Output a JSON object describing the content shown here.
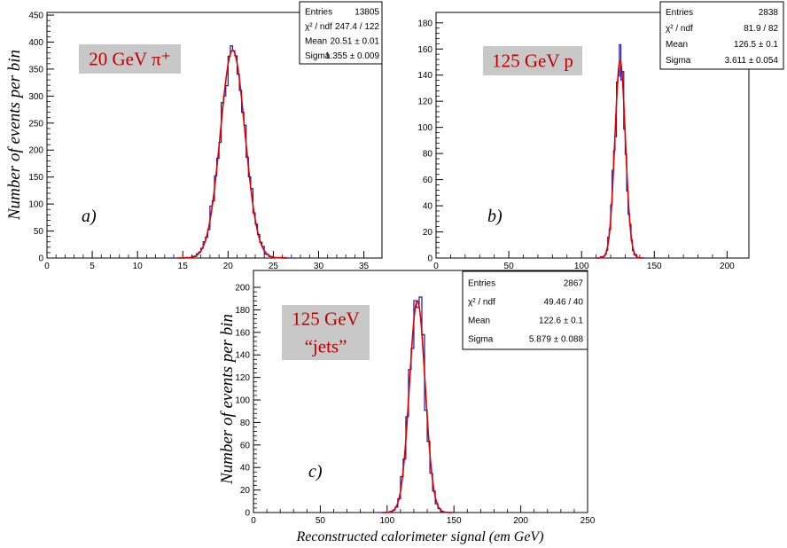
{
  "figure": {
    "ylabel": "Number of events per bin",
    "xlabel": "Reconstructed calorimeter signal (em GeV)"
  },
  "chart_data": [
    {
      "type": "histogram",
      "panel": "a)",
      "tag": [
        "20 GeV π⁺"
      ],
      "xlim": [
        0,
        37
      ],
      "ylim": [
        0,
        455
      ],
      "xticks": [
        0,
        5,
        10,
        15,
        20,
        25,
        30,
        35
      ],
      "yticks": [
        0,
        50,
        100,
        150,
        200,
        250,
        300,
        350,
        400,
        450
      ],
      "fit": {
        "mean": 20.51,
        "sigma": 1.355,
        "peak": 385,
        "color": "#e00000"
      },
      "histogram_color": "#1a1aa0",
      "bin_width": 0.25,
      "stats": [
        {
          "label": "Entries",
          "value": "13805"
        },
        {
          "label": "χ² / ndf",
          "value": "247.4 / 122"
        },
        {
          "label": "Mean",
          "value": "20.51 ± 0.01"
        },
        {
          "label": "Sigma",
          "value": "1.355 ± 0.009"
        }
      ]
    },
    {
      "type": "histogram",
      "panel": "b)",
      "tag": [
        "125 GeV p"
      ],
      "xlim": [
        0,
        215
      ],
      "ylim": [
        0,
        188
      ],
      "xticks": [
        0,
        50,
        100,
        150,
        200
      ],
      "yticks": [
        0,
        20,
        40,
        60,
        80,
        100,
        120,
        140,
        160,
        180
      ],
      "fit": {
        "mean": 126.5,
        "sigma": 3.611,
        "peak": 151,
        "color": "#e00000"
      },
      "histogram_color": "#1a1aa0",
      "bin_width": 1,
      "stats": [
        {
          "label": "Entries",
          "value": "2838"
        },
        {
          "label": "χ² / ndf",
          "value": "81.9 / 82"
        },
        {
          "label": "Mean",
          "value": "126.5 ± 0.1"
        },
        {
          "label": "Sigma",
          "value": "3.611 ± 0.054"
        }
      ]
    },
    {
      "type": "histogram",
      "panel": "c)",
      "tag": [
        "125 GeV",
        "“jets”"
      ],
      "xlim": [
        0,
        250
      ],
      "ylim": [
        0,
        215
      ],
      "xticks": [
        0,
        50,
        100,
        150,
        200,
        250
      ],
      "yticks": [
        0,
        20,
        40,
        60,
        80,
        100,
        120,
        140,
        160,
        180,
        200
      ],
      "fit": {
        "mean": 122.6,
        "sigma": 5.879,
        "peak": 188,
        "color": "#e00000"
      },
      "histogram_color": "#1a1aa0",
      "bin_width": 2,
      "stats": [
        {
          "label": "Entries",
          "value": "2867"
        },
        {
          "label": "χ² / ndf",
          "value": "49.46 / 40"
        },
        {
          "label": "Mean",
          "value": "122.6 ± 0.1"
        },
        {
          "label": "Sigma",
          "value": "5.879 ± 0.088"
        }
      ]
    }
  ]
}
